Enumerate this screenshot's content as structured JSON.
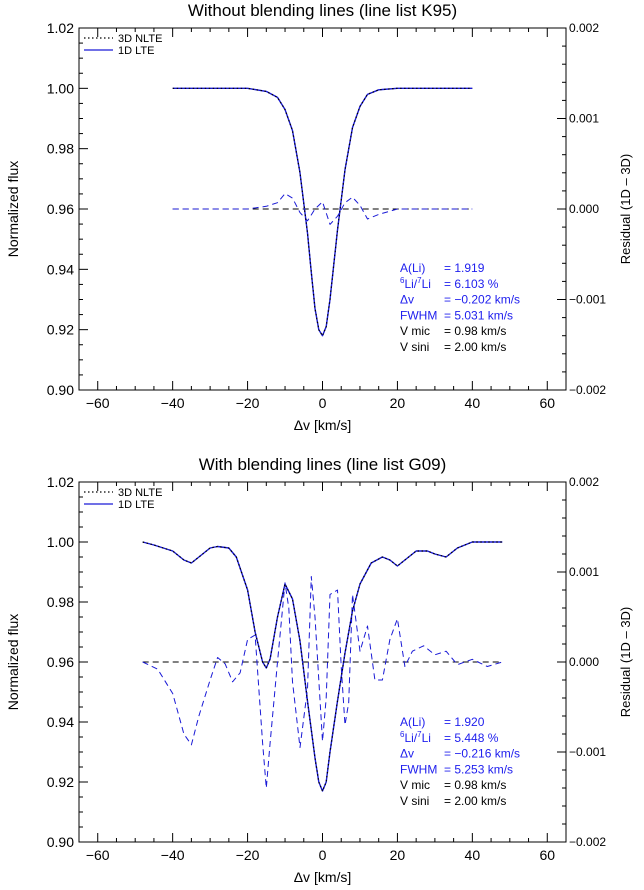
{
  "colors": {
    "black": "#000000",
    "blue": "#1a1ad6",
    "annotation_blue": "#2020ee"
  },
  "chart_data": [
    {
      "type": "line",
      "title": "Without blending lines (line list K95)",
      "xlabel": "Δv [km/s]",
      "ylabel": "Normalized flux",
      "y2label": "Residual (1D – 3D)",
      "xlim": [
        -65,
        65
      ],
      "ylim": [
        0.9,
        1.02
      ],
      "y2lim": [
        -0.002,
        0.002
      ],
      "xticks": [
        "−60",
        "−40",
        "−20",
        "0",
        "20",
        "40",
        "60"
      ],
      "xtick_values": [
        -60,
        -40,
        -20,
        0,
        20,
        40,
        60
      ],
      "yticks": [
        "0.90",
        "0.92",
        "0.94",
        "0.96",
        "0.98",
        "1.00",
        "1.02"
      ],
      "ytick_values": [
        0.9,
        0.92,
        0.94,
        0.96,
        0.98,
        1.0,
        1.02
      ],
      "y2ticks": [
        "−0.002",
        "−0.001",
        "0.000",
        "0.001",
        "0.002"
      ],
      "y2tick_values": [
        -0.002,
        -0.001,
        0.0,
        0.001,
        0.002
      ],
      "legend": {
        "position": "top-left",
        "entries": [
          "3D NLTE",
          "1D LTE"
        ]
      },
      "series": [
        {
          "name": "3D NLTE",
          "style": "dotted",
          "color": "#000000",
          "axis": "left",
          "x": [
            -40,
            -30,
            -20,
            -15,
            -12,
            -10,
            -8,
            -6,
            -4,
            -3,
            -2,
            -1,
            0,
            1,
            2,
            4,
            6,
            8,
            10,
            12,
            15,
            20,
            30,
            40
          ],
          "y": [
            1.0,
            1.0,
            1.0,
            0.999,
            0.997,
            0.993,
            0.986,
            0.972,
            0.952,
            0.939,
            0.927,
            0.92,
            0.918,
            0.921,
            0.93,
            0.953,
            0.973,
            0.987,
            0.994,
            0.998,
            0.9995,
            1.0,
            1.0,
            1.0
          ]
        },
        {
          "name": "1D LTE",
          "style": "solid",
          "color": "#1a1ad6",
          "axis": "left",
          "x": [
            -40,
            -30,
            -20,
            -15,
            -12,
            -10,
            -8,
            -6,
            -4,
            -3,
            -2,
            -1,
            0,
            1,
            2,
            4,
            6,
            8,
            10,
            12,
            15,
            20,
            30,
            40
          ],
          "y": [
            1.0,
            1.0,
            1.0,
            0.999,
            0.997,
            0.993,
            0.986,
            0.972,
            0.952,
            0.939,
            0.927,
            0.92,
            0.918,
            0.921,
            0.93,
            0.953,
            0.973,
            0.987,
            0.994,
            0.998,
            0.9995,
            1.0,
            1.0,
            1.0
          ]
        },
        {
          "name": "reference",
          "style": "dashed",
          "color": "#000000",
          "axis": "right",
          "x": [
            -40,
            40
          ],
          "y": [
            0.0,
            0.0
          ]
        },
        {
          "name": "residual",
          "style": "dashed",
          "color": "#1a1ad6",
          "axis": "right",
          "x": [
            -40,
            -20,
            -15,
            -12,
            -10,
            -8,
            -6,
            -4,
            -2,
            0,
            2,
            4,
            6,
            8,
            10,
            12,
            15,
            20,
            40
          ],
          "y": [
            0.0,
            0.0,
            3e-05,
            7e-05,
            0.00017,
            0.00012,
            -4e-05,
            -0.00013,
            0.0,
            8e-05,
            -0.00017,
            -8e-05,
            7e-05,
            0.00013,
            4e-05,
            -0.00011,
            -6e-05,
            0.0,
            0.0
          ]
        }
      ],
      "annotations": [
        {
          "color": "#2020ee",
          "label": "A(Li)",
          "value": "= 1.919"
        },
        {
          "color": "#2020ee",
          "label_sup1": "6",
          "label_mid": "Li/",
          "label_sup2": "7",
          "label_end": "Li",
          "value": "= 6.103 %"
        },
        {
          "color": "#2020ee",
          "label": "Δv",
          "value": "= −0.202 km/s"
        },
        {
          "color": "#2020ee",
          "label": "FWHM",
          "value": "= 5.031 km/s"
        },
        {
          "color": "#000000",
          "label": "V mic",
          "value": "= 0.98 km/s"
        },
        {
          "color": "#000000",
          "label": "V sini",
          "value": "= 2.00 km/s"
        }
      ]
    },
    {
      "type": "line",
      "title": "With blending lines (line list G09)",
      "xlabel": "Δv [km/s]",
      "ylabel": "Normalized flux",
      "y2label": "Residual (1D – 3D)",
      "xlim": [
        -65,
        65
      ],
      "ylim": [
        0.9,
        1.02
      ],
      "y2lim": [
        -0.002,
        0.002
      ],
      "xticks": [
        "−60",
        "−40",
        "−20",
        "0",
        "20",
        "40",
        "60"
      ],
      "xtick_values": [
        -60,
        -40,
        -20,
        0,
        20,
        40,
        60
      ],
      "yticks": [
        "0.90",
        "0.92",
        "0.94",
        "0.96",
        "0.98",
        "1.00",
        "1.02"
      ],
      "ytick_values": [
        0.9,
        0.92,
        0.94,
        0.96,
        0.98,
        1.0,
        1.02
      ],
      "y2ticks": [
        "−0.002",
        "−0.001",
        "0.000",
        "0.001",
        "0.002"
      ],
      "y2tick_values": [
        -0.002,
        -0.001,
        0.0,
        0.001,
        0.002
      ],
      "legend": {
        "position": "top-left",
        "entries": [
          "3D NLTE",
          "1D LTE"
        ]
      },
      "series": [
        {
          "name": "3D NLTE",
          "style": "dotted",
          "color": "#000000",
          "axis": "left",
          "x": [
            -48,
            -45,
            -40,
            -37,
            -35,
            -33,
            -30,
            -28,
            -25,
            -23,
            -20,
            -18,
            -16,
            -15,
            -14,
            -12,
            -10,
            -8,
            -6,
            -4,
            -2,
            -1,
            0,
            1,
            2,
            4,
            6,
            8,
            10,
            13,
            16,
            18,
            20,
            22,
            25,
            28,
            30,
            33,
            36,
            40,
            45,
            48
          ],
          "y": [
            1.0,
            0.999,
            0.997,
            0.994,
            0.993,
            0.995,
            0.998,
            0.9985,
            0.998,
            0.995,
            0.984,
            0.97,
            0.96,
            0.958,
            0.961,
            0.975,
            0.986,
            0.981,
            0.967,
            0.947,
            0.928,
            0.92,
            0.917,
            0.92,
            0.93,
            0.947,
            0.963,
            0.977,
            0.986,
            0.993,
            0.995,
            0.994,
            0.992,
            0.994,
            0.997,
            0.997,
            0.996,
            0.995,
            0.998,
            1.0,
            1.0,
            1.0
          ]
        },
        {
          "name": "1D LTE",
          "style": "solid",
          "color": "#1a1ad6",
          "axis": "left",
          "x": [
            -48,
            -45,
            -40,
            -37,
            -35,
            -33,
            -30,
            -28,
            -25,
            -23,
            -20,
            -18,
            -16,
            -15,
            -14,
            -12,
            -10,
            -8,
            -6,
            -4,
            -2,
            -1,
            0,
            1,
            2,
            4,
            6,
            8,
            10,
            13,
            16,
            18,
            20,
            22,
            25,
            28,
            30,
            33,
            36,
            40,
            45,
            48
          ],
          "y": [
            1.0,
            0.999,
            0.997,
            0.994,
            0.993,
            0.995,
            0.998,
            0.9985,
            0.998,
            0.995,
            0.984,
            0.97,
            0.96,
            0.958,
            0.961,
            0.975,
            0.986,
            0.981,
            0.967,
            0.947,
            0.928,
            0.92,
            0.917,
            0.92,
            0.93,
            0.947,
            0.963,
            0.977,
            0.986,
            0.993,
            0.995,
            0.994,
            0.992,
            0.994,
            0.997,
            0.997,
            0.996,
            0.995,
            0.998,
            1.0,
            1.0,
            1.0
          ]
        },
        {
          "name": "reference",
          "style": "dashed",
          "color": "#000000",
          "axis": "right",
          "x": [
            -48,
            48
          ],
          "y": [
            0.0,
            0.0
          ]
        },
        {
          "name": "residual",
          "style": "dashed",
          "color": "#1a1ad6",
          "axis": "right",
          "x": [
            -48,
            -44,
            -40,
            -37,
            -35,
            -33,
            -30,
            -28,
            -26,
            -24,
            -22,
            -20,
            -18,
            -16,
            -15,
            -14,
            -12,
            -10,
            -9,
            -8,
            -6,
            -4,
            -3,
            -2,
            -1,
            0,
            1,
            2,
            4,
            5,
            6,
            7,
            8,
            10,
            12,
            14,
            16,
            18,
            20,
            22,
            24,
            27,
            30,
            33,
            36,
            40,
            44,
            48
          ],
          "y": [
            0.0,
            -8e-05,
            -0.00035,
            -0.0008,
            -0.00092,
            -0.0006,
            -0.0002,
            5e-05,
            -2e-05,
            -0.00022,
            -0.00012,
            0.00025,
            0.0003,
            -0.0009,
            -0.0014,
            -0.0009,
            0.0,
            0.00088,
            0.0006,
            -0.00022,
            -0.00095,
            -0.0003,
            0.00095,
            0.0005,
            -0.0002,
            -0.00088,
            -0.0004,
            0.00075,
            0.0008,
            -5e-05,
            -0.0007,
            -0.00045,
            0.00075,
            0.00012,
            0.0004,
            -0.0002,
            -0.0002,
            0.00025,
            0.00048,
            -5e-05,
            0.00012,
            0.00018,
            8e-05,
            0.00012,
            -3e-05,
            3e-05,
            -5e-05,
            0.0
          ]
        }
      ],
      "annotations": [
        {
          "color": "#2020ee",
          "label": "A(Li)",
          "value": "= 1.920"
        },
        {
          "color": "#2020ee",
          "label_sup1": "6",
          "label_mid": "Li/",
          "label_sup2": "7",
          "label_end": "Li",
          "value": "= 5.448 %"
        },
        {
          "color": "#2020ee",
          "label": "Δv",
          "value": "= −0.216 km/s"
        },
        {
          "color": "#2020ee",
          "label": "FWHM",
          "value": "= 5.253 km/s"
        },
        {
          "color": "#000000",
          "label": "V mic",
          "value": "= 0.98 km/s"
        },
        {
          "color": "#000000",
          "label": "V sini",
          "value": "= 2.00 km/s"
        }
      ]
    }
  ]
}
